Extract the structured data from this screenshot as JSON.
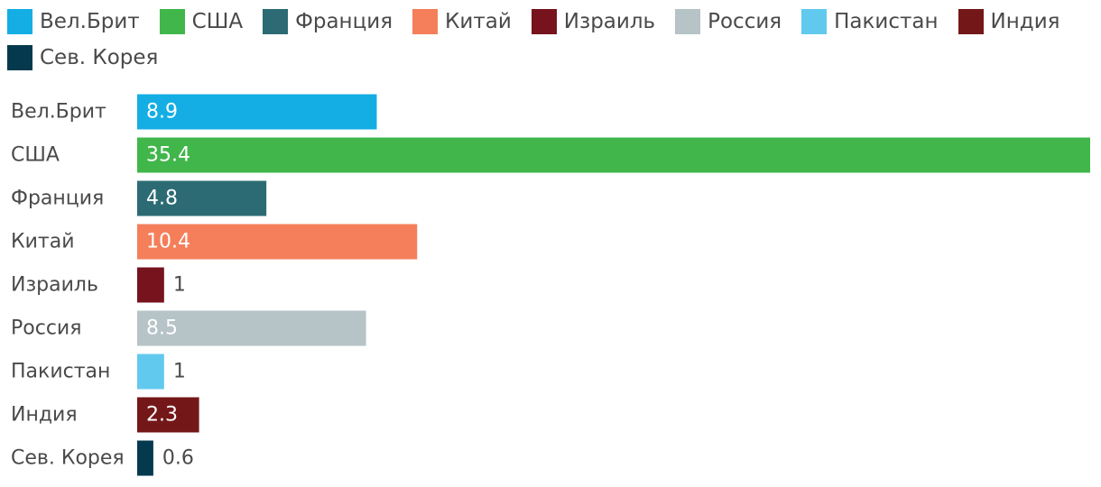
{
  "chart_data": {
    "type": "bar",
    "orientation": "horizontal",
    "categories": [
      "Вел.Брит",
      "США",
      "Франция",
      "Китай",
      "Израиль",
      "Россия",
      "Пакистан",
      "Индия",
      "Сев. Корея"
    ],
    "values": [
      8.9,
      35.4,
      4.8,
      10.4,
      1,
      8.5,
      1,
      2.3,
      0.6
    ],
    "value_labels": [
      "8.9",
      "35.4",
      "4.8",
      "10.4",
      "1",
      "8.5",
      "1",
      "2.3",
      "0.6"
    ],
    "colors": [
      "#14aee5",
      "#41b64b",
      "#2c6b73",
      "#f47f5a",
      "#76131d",
      "#b6c3c7",
      "#62c9ee",
      "#741719",
      "#053a4e"
    ],
    "title": "",
    "xlabel": "",
    "ylabel": "",
    "xlim": [
      0,
      35.4
    ],
    "grid": false,
    "legend_position": "top"
  }
}
